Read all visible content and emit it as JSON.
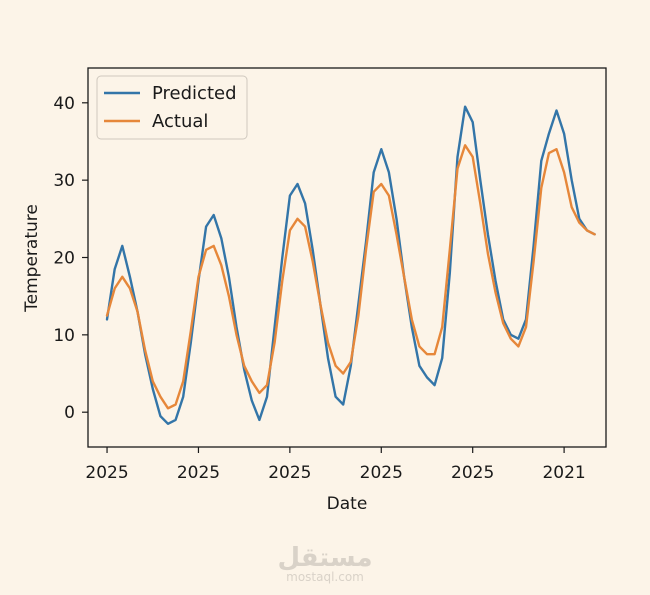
{
  "chart_data": {
    "type": "line",
    "title": "",
    "xlabel": "Date",
    "ylabel": "Temperature",
    "xlim": [
      -2.5,
      65.5
    ],
    "ylim": [
      -4.5,
      44.5
    ],
    "x_ticks": [
      {
        "value": 0,
        "label": "2025"
      },
      {
        "value": 12,
        "label": "2025"
      },
      {
        "value": 24,
        "label": "2025"
      },
      {
        "value": 36,
        "label": "2025"
      },
      {
        "value": 48,
        "label": "2025"
      },
      {
        "value": 60,
        "label": "2021"
      }
    ],
    "y_ticks": [
      0,
      10,
      20,
      30,
      40
    ],
    "legend_position": "top-left",
    "x": [
      0,
      1,
      2,
      3,
      4,
      5,
      6,
      7,
      8,
      9,
      10,
      11,
      12,
      13,
      14,
      15,
      16,
      17,
      18,
      19,
      20,
      21,
      22,
      23,
      24,
      25,
      26,
      27,
      28,
      29,
      30,
      31,
      32,
      33,
      34,
      35,
      36,
      37,
      38,
      39,
      40,
      41,
      42,
      43,
      44,
      45,
      46,
      47,
      48,
      49,
      50,
      51,
      52,
      53,
      54,
      55,
      56,
      57,
      58,
      59,
      60,
      61,
      62,
      63,
      64
    ],
    "series": [
      {
        "name": "Predicted",
        "color": "#3375a8",
        "values": [
          12,
          18.5,
          21.5,
          17.5,
          13,
          7.5,
          3,
          -0.5,
          -1.5,
          -1,
          2,
          9,
          17,
          24,
          25.5,
          22.5,
          17.5,
          11,
          5.5,
          1.5,
          -1,
          2,
          11,
          20,
          28,
          29.5,
          27,
          21,
          14,
          7,
          2,
          1,
          6,
          14,
          22,
          31,
          34,
          31,
          25,
          17.5,
          11,
          6,
          4.5,
          3.5,
          7,
          18,
          33,
          39.5,
          37.5,
          30,
          23,
          17,
          12,
          10,
          9.5,
          12,
          21.5,
          32.5,
          36,
          39,
          36,
          30,
          25,
          23.5,
          23
        ]
      },
      {
        "name": "Actual",
        "color": "#e6873a",
        "values": [
          12.5,
          16,
          17.5,
          16,
          13,
          8,
          4,
          2,
          0.5,
          1,
          4,
          10.5,
          17.5,
          21,
          21.5,
          19,
          15,
          10,
          6,
          4,
          2.5,
          3.5,
          9,
          17,
          23.5,
          25,
          24,
          19.5,
          14,
          9,
          6,
          5,
          6.5,
          12.5,
          21,
          28.5,
          29.5,
          28,
          23,
          17.5,
          12,
          8.5,
          7.5,
          7.5,
          11,
          21,
          31.5,
          34.5,
          33,
          27,
          20.5,
          15.5,
          11.5,
          9.5,
          8.5,
          11,
          19.5,
          29,
          33.5,
          34,
          31,
          26.5,
          24.5,
          23.5,
          23
        ]
      }
    ]
  },
  "watermark": {
    "arabic": "مستقل",
    "latin": "mostaql.com"
  }
}
